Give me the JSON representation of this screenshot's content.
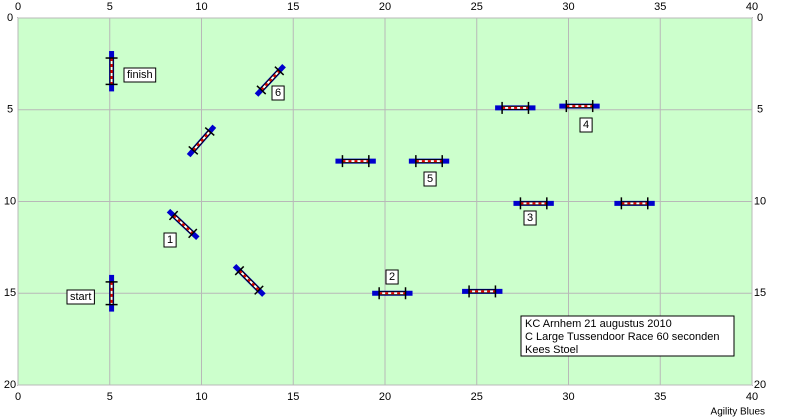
{
  "axes": {
    "xlim": [
      0,
      40
    ],
    "ylim": [
      0,
      20
    ],
    "xticks": [
      0,
      5,
      10,
      15,
      20,
      25,
      30,
      35,
      40
    ],
    "yticks": [
      0,
      5,
      10,
      15,
      20
    ]
  },
  "labels": [
    "finish",
    "6",
    "1",
    "start",
    "2",
    "3",
    "4",
    "5"
  ],
  "info": [
    "KC Arnhem 21 augustus 2010",
    "C Large Tussendoor Race 60 seconden",
    "Kees Stoel"
  ],
  "footer": "Agility Blues"
}
